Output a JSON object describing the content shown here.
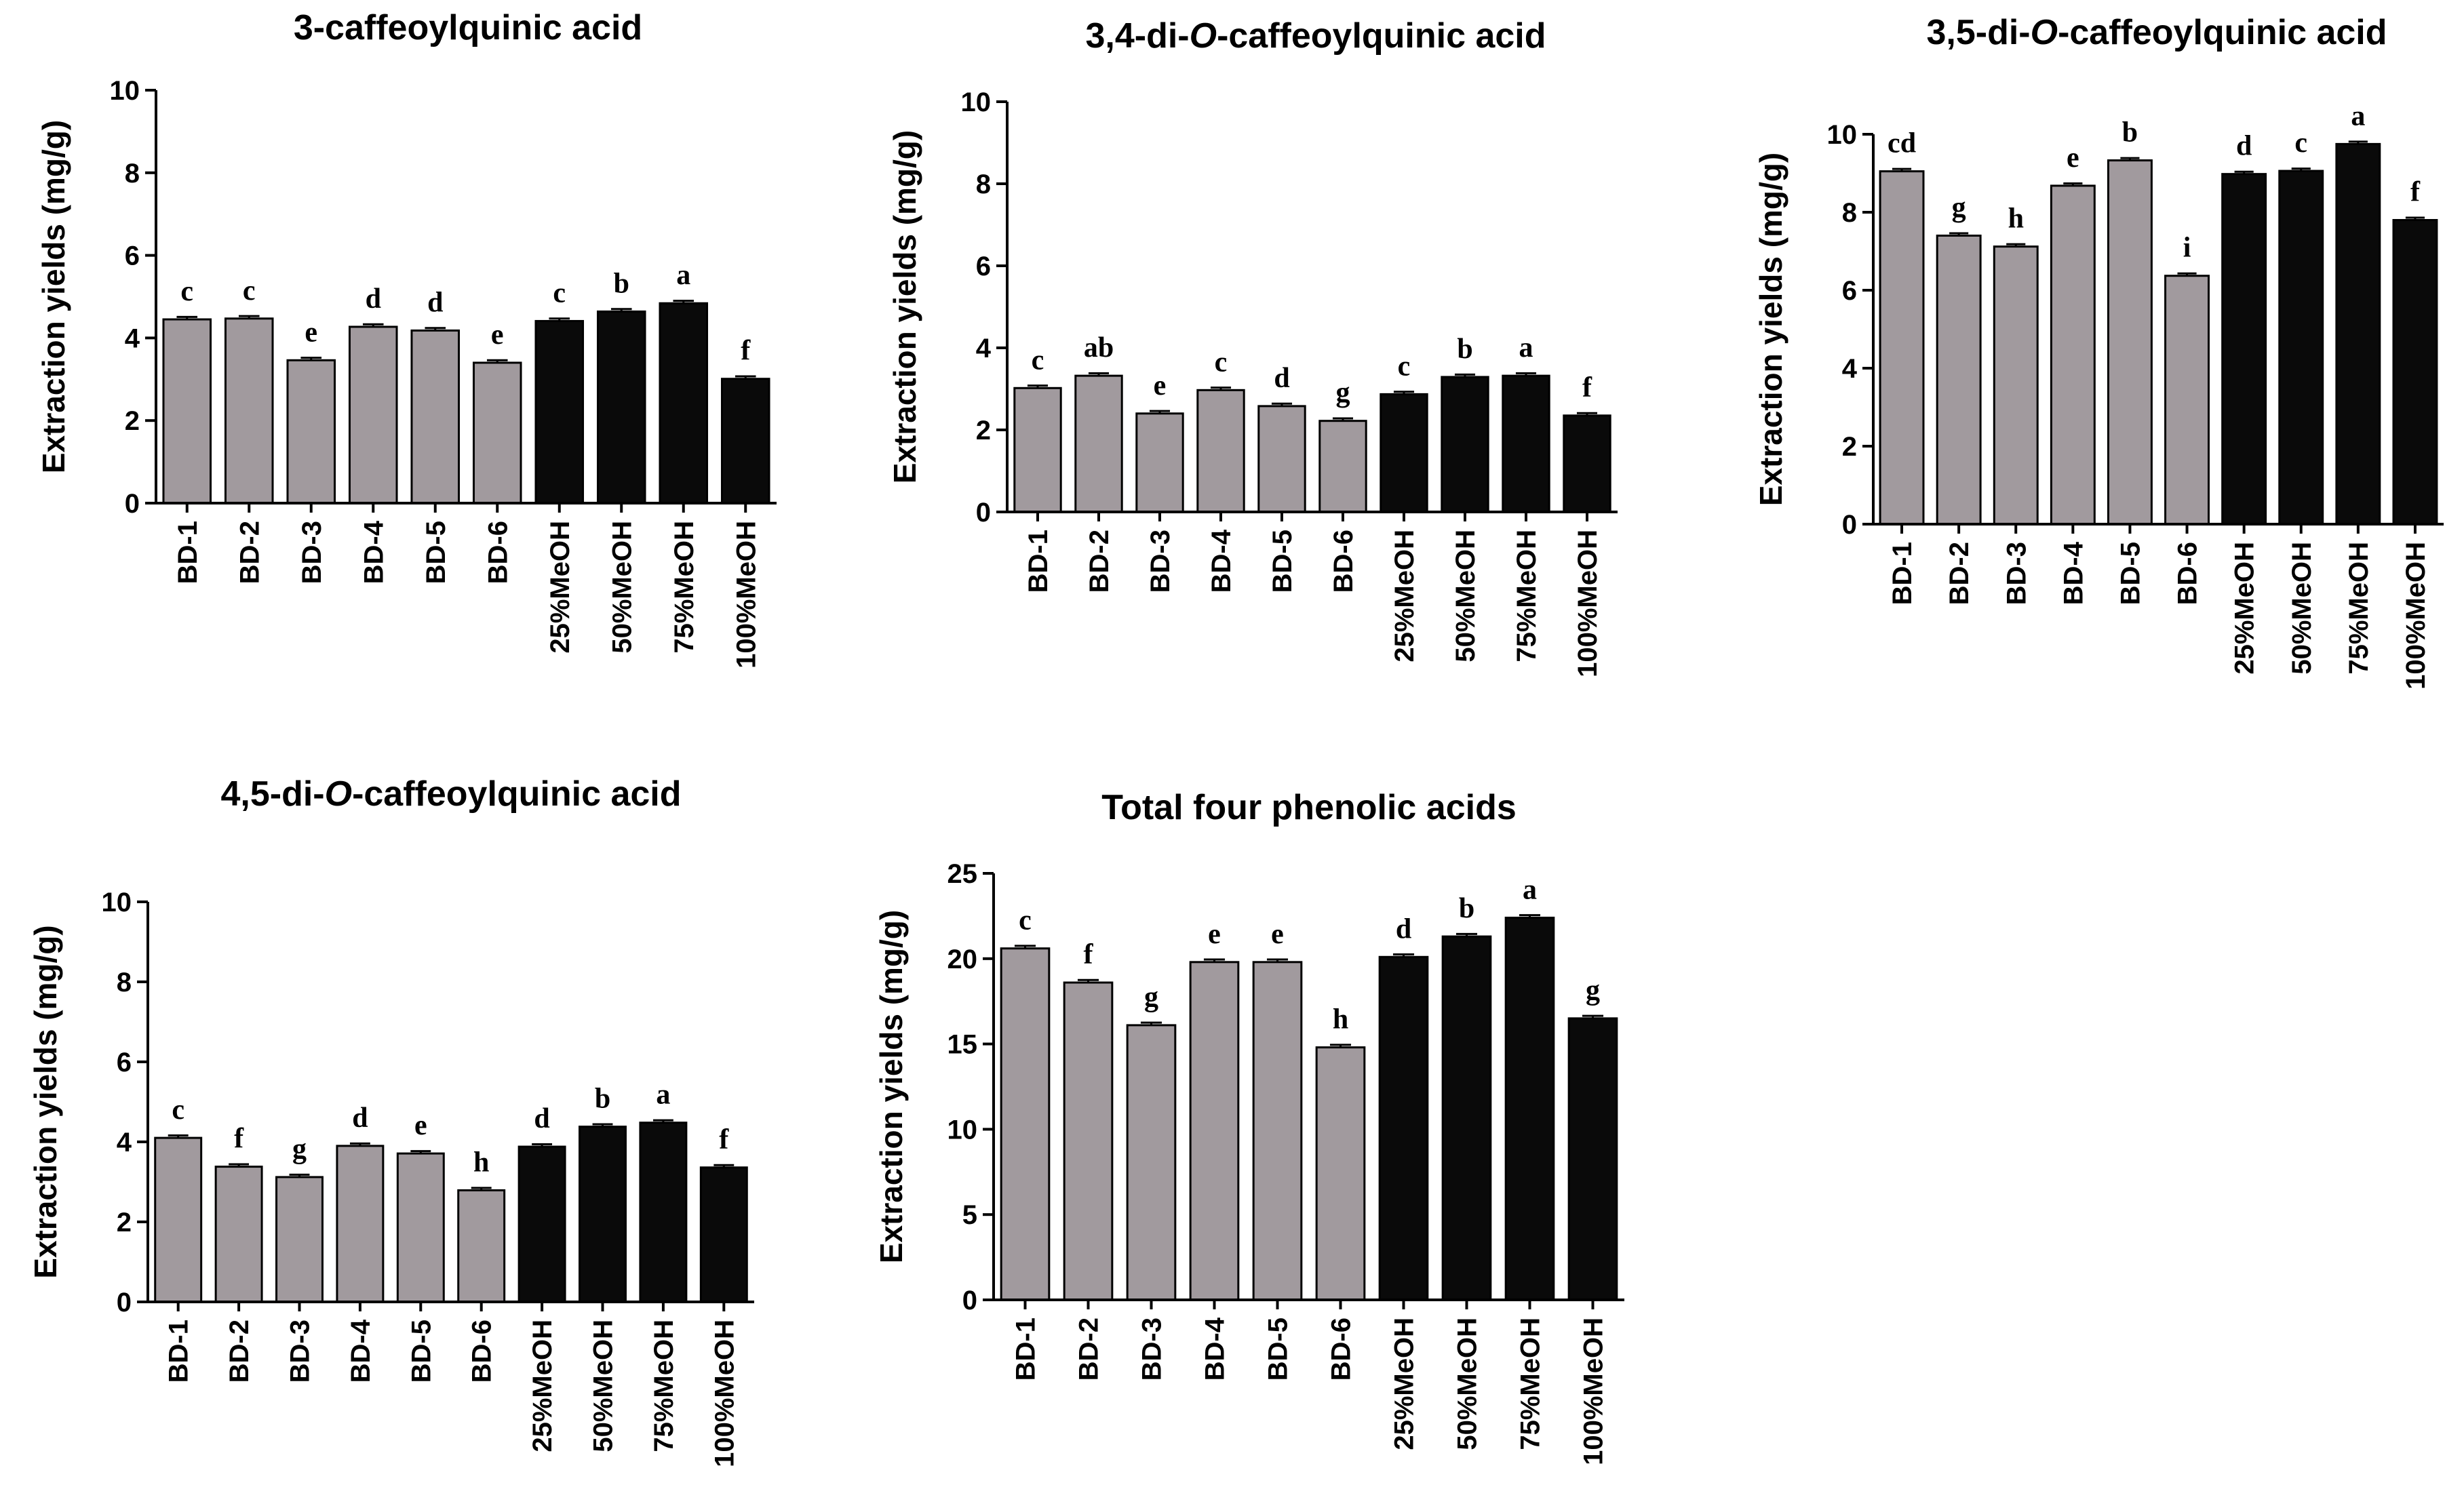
{
  "figure": {
    "ylabel": "Extraction yields (mg/g)"
  },
  "colors": {
    "bd": "#a19a9e",
    "meoh": "#0a0a0a",
    "axis": "#000000"
  },
  "chart_data": [
    {
      "type": "bar",
      "title": "3-caffeoylquinic acid",
      "title_parts": [
        {
          "text": "3-caffeoylquinic acid",
          "italic": false
        }
      ],
      "ylabel": "Extraction yields (mg/g)",
      "ylim": [
        0,
        10
      ],
      "yticks": [
        "0",
        "2",
        "4",
        "6",
        "8",
        "10"
      ],
      "categories": [
        "BD-1",
        "BD-2",
        "BD-3",
        "BD-4",
        "BD-5",
        "BD-6",
        "25%MeOH",
        "50%MeOH",
        "75%MeOH",
        "100%MeOH"
      ],
      "values": [
        4.45,
        4.47,
        3.46,
        4.27,
        4.18,
        3.4,
        4.41,
        4.64,
        4.84,
        3.01
      ],
      "significance": [
        "c",
        "c",
        "e",
        "d",
        "d",
        "e",
        "c",
        "b",
        "a",
        "f"
      ],
      "group": [
        "bd",
        "bd",
        "bd",
        "bd",
        "bd",
        "bd",
        "meoh",
        "meoh",
        "meoh",
        "meoh"
      ]
    },
    {
      "type": "bar",
      "title": "3,4-di-O-caffeoylquinic acid",
      "title_parts": [
        {
          "text": "3,4-di-",
          "italic": false
        },
        {
          "text": "O",
          "italic": true
        },
        {
          "text": "-caffeoylquinic acid",
          "italic": false
        }
      ],
      "ylabel": "Extraction yields (mg/g)",
      "ylim": [
        0,
        10
      ],
      "yticks": [
        "0",
        "2",
        "4",
        "6",
        "8",
        "10"
      ],
      "categories": [
        "BD-1",
        "BD-2",
        "BD-3",
        "BD-4",
        "BD-5",
        "BD-6",
        "25%MeOH",
        "50%MeOH",
        "75%MeOH",
        "100%MeOH"
      ],
      "values": [
        3.02,
        3.32,
        2.4,
        2.97,
        2.58,
        2.22,
        2.87,
        3.29,
        3.32,
        2.35
      ],
      "significance": [
        "c",
        "ab",
        "e",
        "c",
        "d",
        "g",
        "c",
        "b",
        "a",
        "f"
      ],
      "group": [
        "bd",
        "bd",
        "bd",
        "bd",
        "bd",
        "bd",
        "meoh",
        "meoh",
        "meoh",
        "meoh"
      ]
    },
    {
      "type": "bar",
      "title": "3,5-di-O-caffeoylquinic acid",
      "title_parts": [
        {
          "text": "3,5-di-",
          "italic": false
        },
        {
          "text": "O",
          "italic": true
        },
        {
          "text": "-caffeoylquinic acid",
          "italic": false
        }
      ],
      "ylabel": "Extraction yields (mg/g)",
      "ylim": [
        0,
        10
      ],
      "yticks": [
        "0",
        "2",
        "4",
        "6",
        "8",
        "10"
      ],
      "categories": [
        "BD-1",
        "BD-2",
        "BD-3",
        "BD-4",
        "BD-5",
        "BD-6",
        "25%MeOH",
        "50%MeOH",
        "75%MeOH",
        "100%MeOH"
      ],
      "values": [
        9.05,
        7.4,
        7.12,
        8.68,
        9.33,
        6.37,
        8.98,
        9.06,
        9.75,
        7.8
      ],
      "significance": [
        "cd",
        "g",
        "h",
        "e",
        "b",
        "i",
        "d",
        "c",
        "a",
        "f"
      ],
      "group": [
        "bd",
        "bd",
        "bd",
        "bd",
        "bd",
        "bd",
        "meoh",
        "meoh",
        "meoh",
        "meoh"
      ]
    },
    {
      "type": "bar",
      "title": "4,5-di-O-caffeoylquinic acid",
      "title_parts": [
        {
          "text": "4,5-di-",
          "italic": false
        },
        {
          "text": "O",
          "italic": true
        },
        {
          "text": "-caffeoylquinic acid",
          "italic": false
        }
      ],
      "ylabel": "Extraction yields (mg/g)",
      "ylim": [
        0,
        10
      ],
      "yticks": [
        "0",
        "2",
        "4",
        "6",
        "8",
        "10"
      ],
      "categories": [
        "BD-1",
        "BD-2",
        "BD-3",
        "BD-4",
        "BD-5",
        "BD-6",
        "25%MeOH",
        "50%MeOH",
        "75%MeOH",
        "100%MeOH"
      ],
      "values": [
        4.1,
        3.38,
        3.12,
        3.9,
        3.71,
        2.79,
        3.88,
        4.38,
        4.48,
        3.36
      ],
      "significance": [
        "c",
        "f",
        "g",
        "d",
        "e",
        "h",
        "d",
        "b",
        "a",
        "f"
      ],
      "group": [
        "bd",
        "bd",
        "bd",
        "bd",
        "bd",
        "bd",
        "meoh",
        "meoh",
        "meoh",
        "meoh"
      ]
    },
    {
      "type": "bar",
      "title": "Total four phenolic acids",
      "title_parts": [
        {
          "text": "Total four phenolic acids",
          "italic": false
        }
      ],
      "ylabel": "Extraction yields (mg/g)",
      "ylim": [
        0,
        25
      ],
      "yticks": [
        "0",
        "5",
        "10",
        "15",
        "20",
        "25"
      ],
      "categories": [
        "BD-1",
        "BD-2",
        "BD-3",
        "BD-4",
        "BD-5",
        "BD-6",
        "25%MeOH",
        "50%MeOH",
        "75%MeOH",
        "100%MeOH"
      ],
      "values": [
        20.6,
        18.6,
        16.1,
        19.8,
        19.8,
        14.8,
        20.1,
        21.3,
        22.4,
        16.5
      ],
      "significance": [
        "c",
        "f",
        "g",
        "e",
        "e",
        "h",
        "d",
        "b",
        "a",
        "g"
      ],
      "group": [
        "bd",
        "bd",
        "bd",
        "bd",
        "bd",
        "bd",
        "meoh",
        "meoh",
        "meoh",
        "meoh"
      ]
    }
  ]
}
